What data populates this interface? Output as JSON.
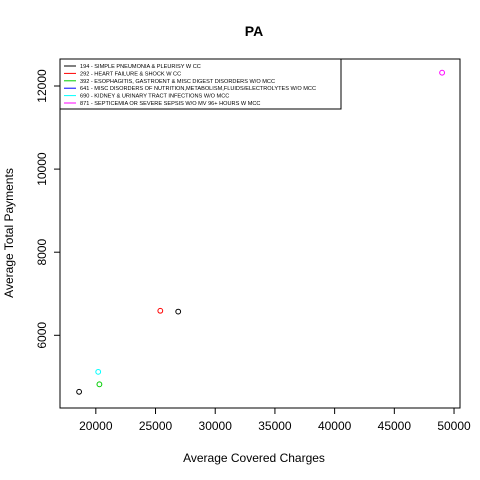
{
  "chart_data": {
    "type": "scatter",
    "title": "PA",
    "xlabel": "Average Covered Charges",
    "ylabel": "Average Total Payments",
    "xlim": [
      17000,
      50500
    ],
    "ylim": [
      4250,
      12650
    ],
    "x_ticks": [
      20000,
      25000,
      30000,
      35000,
      40000,
      45000,
      50000
    ],
    "y_ticks": [
      6000,
      8000,
      10000,
      12000
    ],
    "x_tick_labels": [
      "20000",
      "25000",
      "30000",
      "35000",
      "40000",
      "45000",
      "50000"
    ],
    "y_tick_labels": [
      "6000",
      "8000",
      "10000",
      "12000"
    ],
    "grid": false,
    "legend_position": "top-left",
    "series": [
      {
        "name": "194 - SIMPLE PNEUMONIA & PLEURISY W CC",
        "color": "#000000",
        "points": [
          [
            18600,
            4640
          ],
          [
            26900,
            6570
          ]
        ]
      },
      {
        "name": "292 - HEART FAILURE & SHOCK W CC",
        "color": "#ff0000",
        "points": [
          [
            25400,
            6590
          ]
        ]
      },
      {
        "name": "392 - ESOPHAGITIS, GASTROENT & MISC DIGEST DISORDERS W/O MCC",
        "color": "#00cd00",
        "points": [
          [
            20300,
            4820
          ]
        ]
      },
      {
        "name": "641 - MISC DISORDERS OF NUTRITION,METABOLISM,FLUIDS/ELECTROLYTES W/O MCC",
        "color": "#0000ff",
        "points": []
      },
      {
        "name": "690 - KIDNEY & URINARY TRACT INFECTIONS W/O MCC",
        "color": "#00ffff",
        "points": [
          [
            20200,
            5120
          ]
        ]
      },
      {
        "name": "871 - SEPTICEMIA OR SEVERE SEPSIS W/O MV 96+ HOURS W MCC",
        "color": "#ff00ff",
        "points": [
          [
            49000,
            12320
          ]
        ]
      }
    ]
  }
}
